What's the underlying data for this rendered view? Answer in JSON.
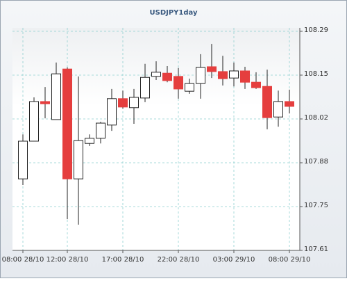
{
  "chart_data": {
    "type": "candlestick",
    "title": "USDJPY1day",
    "categories": [
      "08:00 28/10",
      null,
      null,
      null,
      "12:00 28/10",
      null,
      null,
      null,
      null,
      "17:00 28/10",
      null,
      null,
      null,
      null,
      "22:00 28/10",
      null,
      null,
      null,
      null,
      "03:00 29/10",
      null,
      null,
      null,
      null,
      "08:00 29/10"
    ],
    "open": [
      107.832,
      107.949,
      108.072,
      108.016,
      108.173,
      107.832,
      107.942,
      107.958,
      107.999,
      108.081,
      108.053,
      108.083,
      108.15,
      108.16,
      108.15,
      108.104,
      108.128,
      108.18,
      108.165,
      108.145,
      108.167,
      108.132,
      108.119,
      108.024,
      108.072
    ],
    "high": [
      107.97,
      108.085,
      108.117,
      108.193,
      108.178,
      108.15,
      107.97,
      108.009,
      108.111,
      108.106,
      108.111,
      108.189,
      108.197,
      108.182,
      108.176,
      108.143,
      108.219,
      108.251,
      108.214,
      108.193,
      108.18,
      108.163,
      108.171,
      108.106,
      108.109
    ],
    "low": [
      107.813,
      107.949,
      108.02,
      108.016,
      107.707,
      107.69,
      107.934,
      107.942,
      107.981,
      108.05,
      108.003,
      108.07,
      108.139,
      108.132,
      108.081,
      108.096,
      108.081,
      108.145,
      108.122,
      108.119,
      108.111,
      108.111,
      107.986,
      107.994,
      108.035
    ],
    "close": [
      107.949,
      108.072,
      108.065,
      108.158,
      107.832,
      107.951,
      107.958,
      108.005,
      108.081,
      108.055,
      108.085,
      108.147,
      108.163,
      108.137,
      108.111,
      108.128,
      108.178,
      108.165,
      108.143,
      108.167,
      108.132,
      108.115,
      108.022,
      108.072,
      108.057
    ],
    "up_color": "#ffffff",
    "down_color": "#e53e3e",
    "ylim": [
      107.61,
      108.29
    ],
    "yticks": [
      107.61,
      {
        "value": 107.746,
        "label": "107.75"
      },
      {
        "value": 107.882,
        "label": "107.88"
      },
      {
        "value": 108.018,
        "label": "108.02"
      },
      {
        "value": 108.154,
        "label": "108.15"
      },
      108.29
    ],
    "grid": true
  }
}
